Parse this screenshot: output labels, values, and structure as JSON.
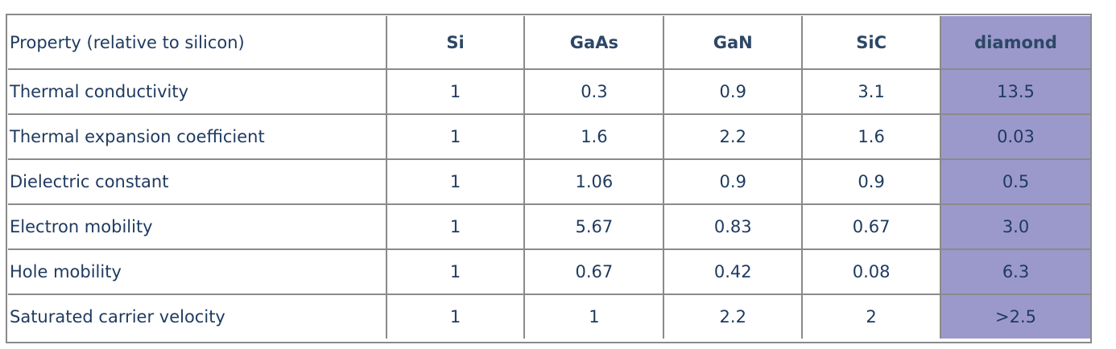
{
  "table": {
    "headers": [
      "Property (relative to silicon)",
      "Si",
      "GaAs",
      "GaN",
      "SiC",
      "diamond"
    ],
    "rows": [
      [
        "Thermal conductivity",
        "1",
        "0.3",
        "0.9",
        "3.1",
        "13.5"
      ],
      [
        "Thermal expansion coefficient",
        "1",
        "1.6",
        "2.2",
        "1.6",
        "0.03"
      ],
      [
        "Dielectric constant",
        "1",
        "1.06",
        "0.9",
        "0.9",
        "0.5"
      ],
      [
        "Electron mobility",
        "1",
        "5.67",
        "0.83",
        "0.67",
        "3.0"
      ],
      [
        "Hole mobility",
        "1",
        "0.67",
        "0.42",
        "0.08",
        "6.3"
      ],
      [
        "Saturated carrier velocity",
        "1",
        "1",
        "2.2",
        "2",
        ">2.5"
      ]
    ]
  },
  "colors": {
    "highlight_column": "#9b99cb",
    "text": "#1e3a5f",
    "border": "#8a8a8a"
  }
}
